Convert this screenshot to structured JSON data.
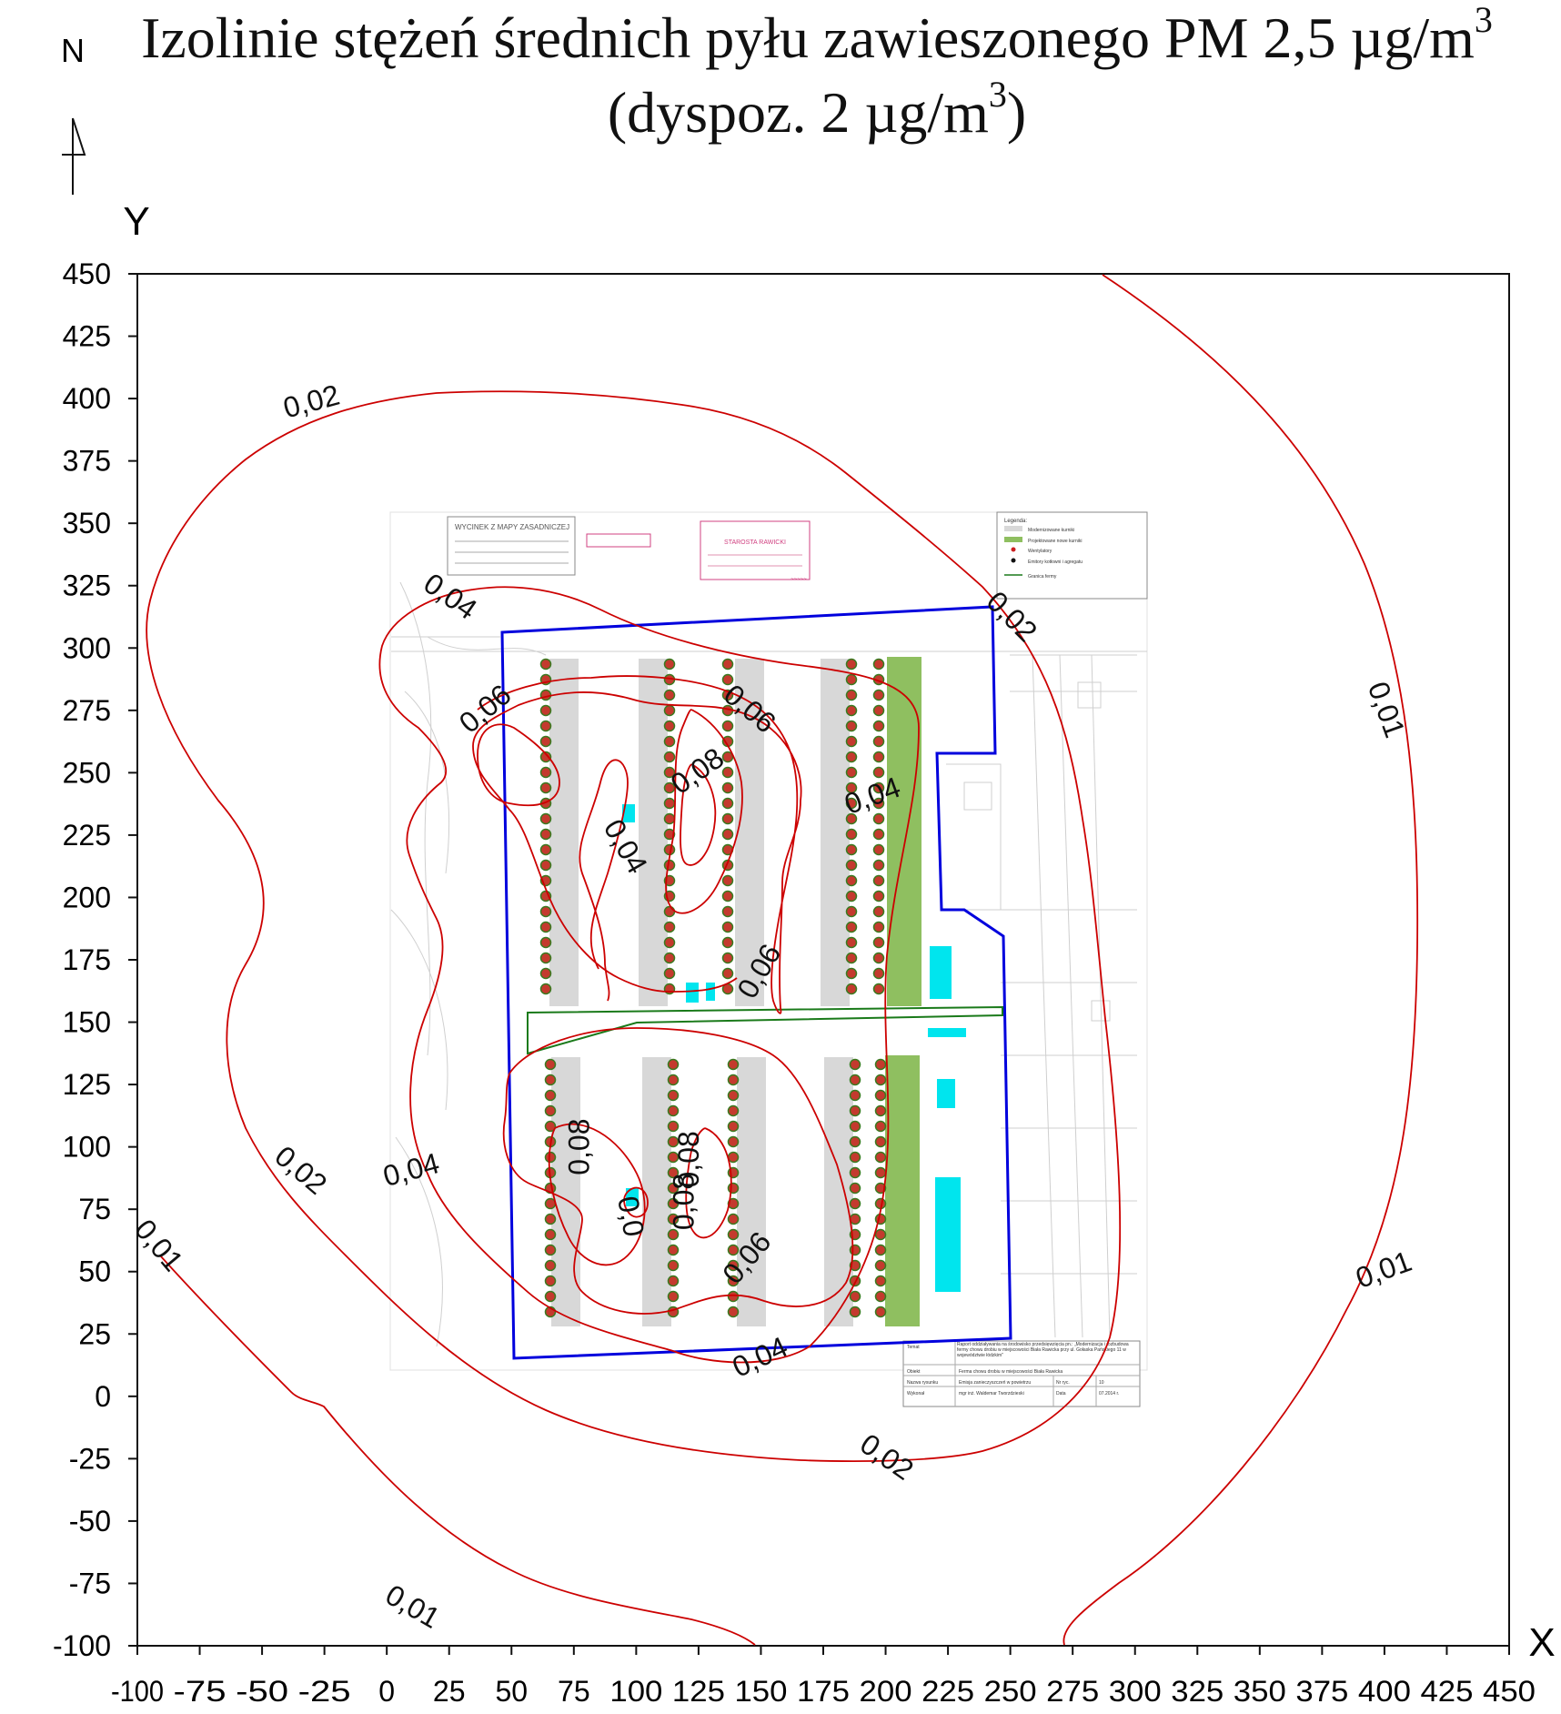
{
  "title": {
    "line1_text": "Izolinie stężeń średnich pyłu zawieszonego PM 2,5 µg/m",
    "line1_sup": "3",
    "line2_text_a": "(dyspoz. 2 µg/m",
    "line2_sup": "3",
    "line2_text_b": ")"
  },
  "north_label": "N",
  "axes": {
    "x_label": "X",
    "y_label": "Y",
    "x_ticks": [
      "-100",
      "-75",
      "-50",
      "-25",
      "0",
      "25",
      "50",
      "75",
      "100",
      "125",
      "150",
      "175",
      "200",
      "225",
      "250",
      "275",
      "300",
      "325",
      "350",
      "375",
      "400",
      "425",
      "450"
    ],
    "y_ticks": [
      "450",
      "425",
      "400",
      "375",
      "350",
      "325",
      "300",
      "275",
      "250",
      "225",
      "200",
      "175",
      "150",
      "125",
      "100",
      "75",
      "50",
      "25",
      "0",
      "-25",
      "-50",
      "-75",
      "-100"
    ],
    "x_range": [
      -100,
      450
    ],
    "y_range": [
      -100,
      450
    ]
  },
  "contours": {
    "color": "#cc0000",
    "labels": [
      {
        "text": "0,01",
        "x": 400,
        "y": 275
      },
      {
        "text": "0,01",
        "x": -92,
        "y": 60
      },
      {
        "text": "0,01",
        "x": 10,
        "y": -85
      },
      {
        "text": "0,01",
        "x": 400,
        "y": 50
      },
      {
        "text": "0,02",
        "x": -30,
        "y": 398
      },
      {
        "text": "0,02",
        "x": 250,
        "y": 312
      },
      {
        "text": "0,02",
        "x": -35,
        "y": 90
      },
      {
        "text": "0,02",
        "x": 200,
        "y": -25
      },
      {
        "text": "0,04",
        "x": 25,
        "y": 320
      },
      {
        "text": "0,04",
        "x": 195,
        "y": 240
      },
      {
        "text": "0,04",
        "x": 95,
        "y": 220
      },
      {
        "text": "0,04",
        "x": 10,
        "y": 90
      },
      {
        "text": "0,04",
        "x": 150,
        "y": 15
      },
      {
        "text": "0,06",
        "x": 40,
        "y": 275
      },
      {
        "text": "0,06",
        "x": 145,
        "y": 275
      },
      {
        "text": "0,06",
        "x": 150,
        "y": 170
      },
      {
        "text": "0,06",
        "x": 145,
        "y": 55
      },
      {
        "text": "0,08",
        "x": 125,
        "y": 250
      },
      {
        "text": "0,08",
        "x": 78,
        "y": 100
      },
      {
        "text": "0,08",
        "x": 122,
        "y": 95
      },
      {
        "text": "0,08",
        "x": 120,
        "y": 78
      },
      {
        "text": "0,0",
        "x": 97,
        "y": 72
      }
    ]
  },
  "site_plan": {
    "boundary_color": "#0000dd",
    "legend_title": "Legenda:",
    "legend_items": [
      "Modernizowane kurniki",
      "Projektowane nowe kurniki",
      "Wentylatory",
      "Emitory kotłowni i agregatu",
      "Granica fermy"
    ],
    "stamp_map": "WYCINEK Z MAPY ZASADNICZEJ",
    "stamp_starosta": "STAROSTA RAWICKI",
    "table_rows": [
      {
        "k": "Temat",
        "v": "Raport oddziaływania na środowisko przedsięwzięcia pn.: „Modernizacja i rozbudowa fermy chowu drobiu w miejscowości Biała Rawicka przy ul. Gołaska Pańskiego 11 w województwie łódzkim\""
      },
      {
        "k": "Obiekt",
        "v": "Ferma chowu drobiu w miejscowości Biała Rawicka"
      },
      {
        "k": "Nazwa rysunku",
        "v": "Emisja zanieczyszczeń w powietrzu"
      },
      {
        "k": "Wykonał",
        "v": "mgr inż. Waldemar Tworzdzieski"
      }
    ],
    "table_extra": [
      "Nr ryc.",
      "10",
      "Data",
      "07.2014 r."
    ]
  }
}
